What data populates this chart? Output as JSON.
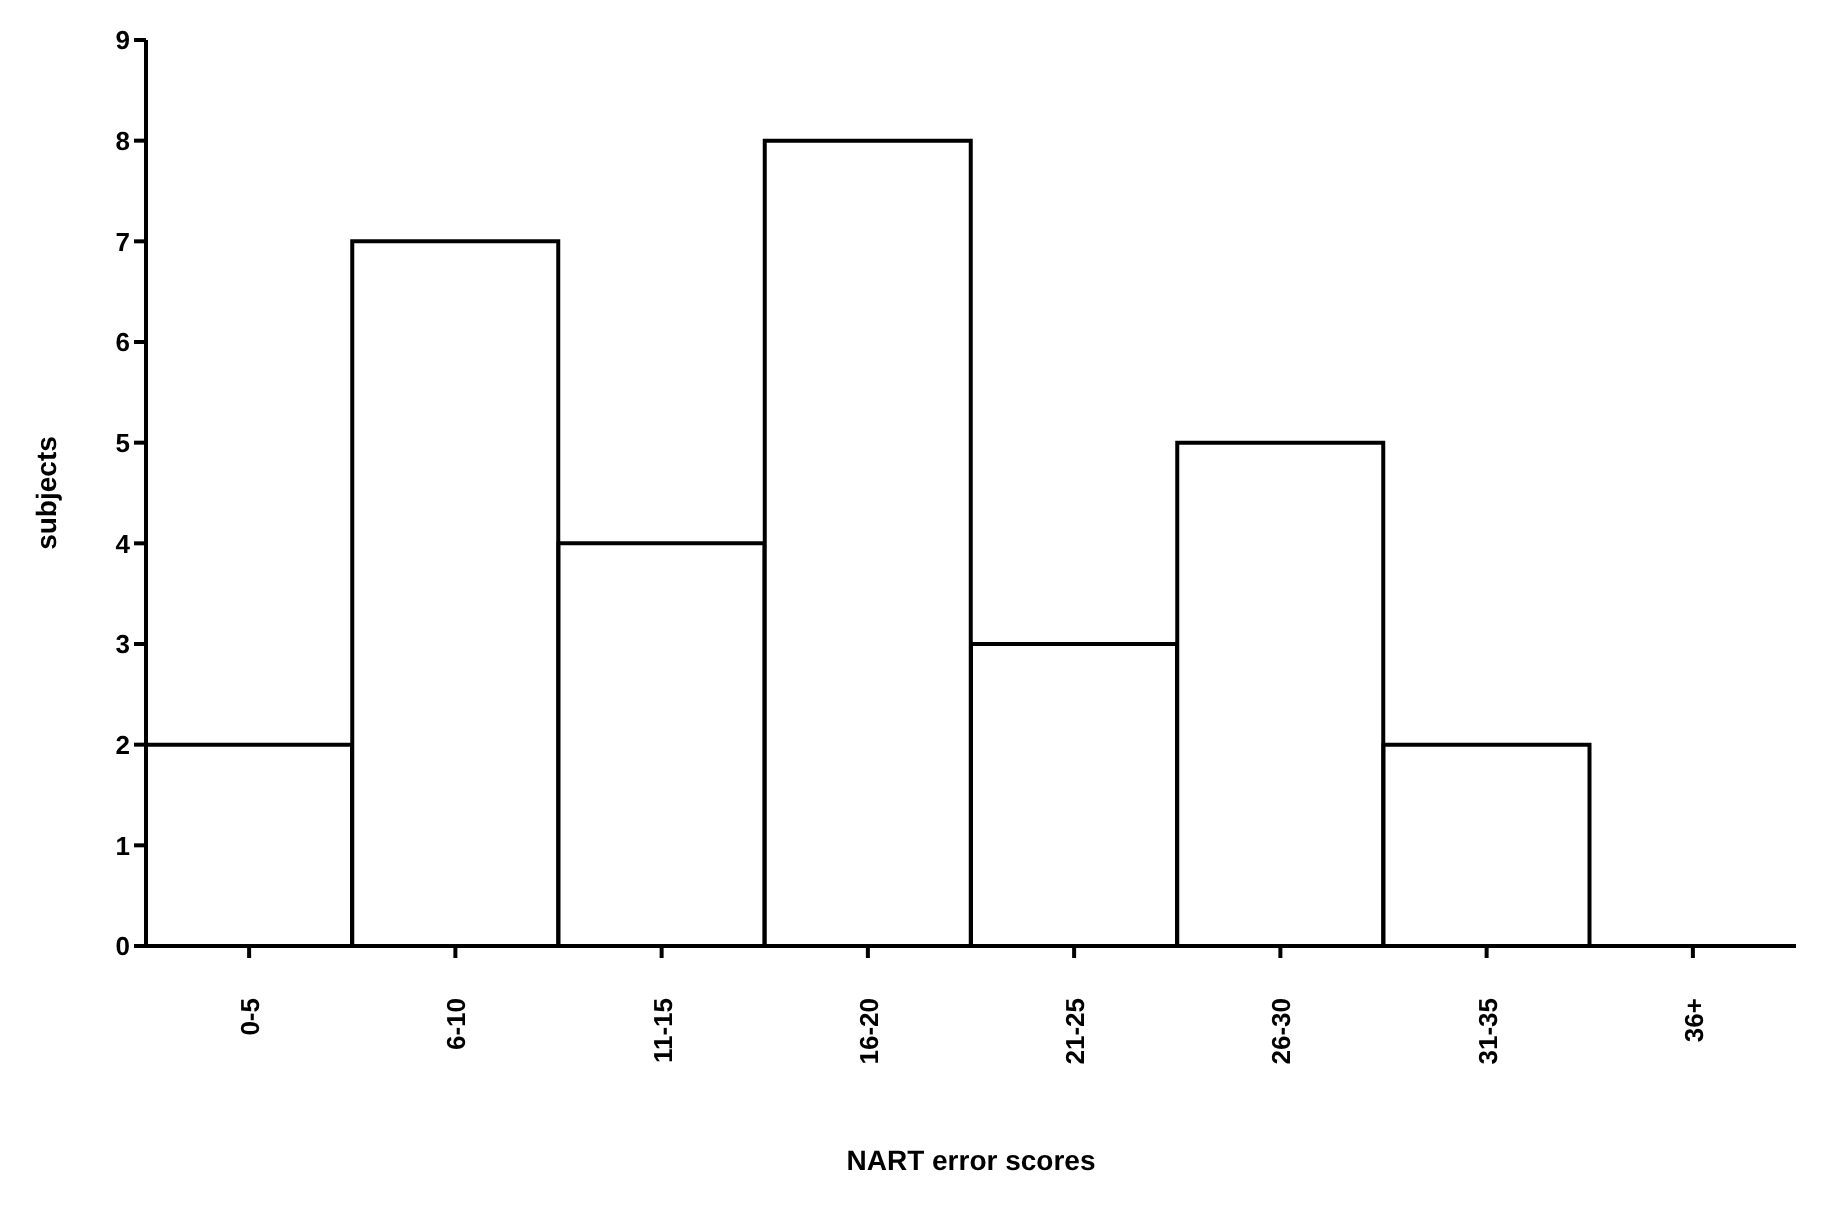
{
  "chart_data": {
    "type": "bar",
    "xlabel": "NART error scores",
    "ylabel": "subjects",
    "categories": [
      "0-5",
      "6-10",
      "11-15",
      "16-20",
      "21-25",
      "26-30",
      "31-35",
      "36+"
    ],
    "values": [
      2,
      7,
      4,
      8,
      3,
      5,
      2,
      0
    ],
    "color": "#ffffff",
    "ylim": [
      0,
      9
    ],
    "yticks": [
      0,
      1,
      2,
      3,
      4,
      5,
      6,
      7,
      8,
      9
    ],
    "grid": false,
    "legend": false
  }
}
